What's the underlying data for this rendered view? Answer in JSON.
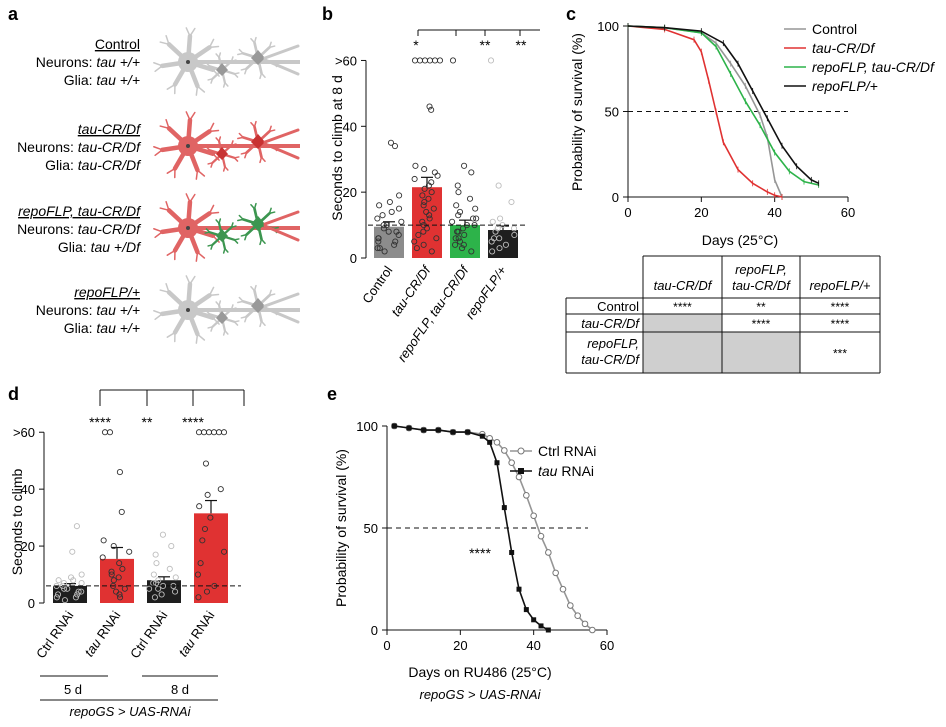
{
  "panel_a": {
    "label": "a",
    "genotypes": [
      {
        "title": "Control",
        "neurons_prefix": "Neurons: ",
        "neurons_value": "tau +/+",
        "glia_prefix": "Glia: ",
        "glia_value": "tau +/+"
      },
      {
        "title": "tau-CR/Df",
        "neurons_prefix": "Neurons: ",
        "neurons_value": "tau-CR/Df",
        "glia_prefix": "Glia: ",
        "glia_value": "tau-CR/Df"
      },
      {
        "title": "repoFLP, tau-CR/Df",
        "neurons_prefix": "Neurons: ",
        "neurons_value": "tau-CR/Df",
        "glia_prefix": "Glia: ",
        "glia_value": "tau +/Df"
      },
      {
        "title": "repoFLP/+",
        "neurons_prefix": "Neurons: ",
        "neurons_value": "tau +/+",
        "glia_prefix": "Glia: ",
        "glia_value": "tau +/+"
      }
    ],
    "colors": {
      "control_neuron": "#c8c8c8",
      "mutant_neuron": "#e06464",
      "mutant_soma": "#c83232",
      "glia_rescue": "#3c9650"
    }
  },
  "panel_b": {
    "label": "b",
    "sig": [
      "*",
      "**",
      "**"
    ],
    "chart_data": {
      "type": "bar",
      "ylabel": "Seconds to climb at 8 d",
      "categories": [
        "Control",
        "tau-CR/Df",
        "repoFLP, tau-CR/Df",
        "repoFLP/+"
      ],
      "values": [
        9.5,
        21.5,
        10,
        8.5
      ],
      "sem": [
        1.5,
        3,
        1.5,
        1.2
      ],
      "colors": [
        "#8c8c8c",
        "#e03232",
        "#2db34a",
        "#1e1e1e"
      ],
      "ytick_labels": [
        "0",
        "20",
        "40",
        ">60"
      ],
      "yticks": [
        0,
        20,
        40,
        60
      ],
      "ylim": [
        0,
        65
      ],
      "threshold": 10,
      "points": [
        [
          34,
          35,
          19,
          17,
          16,
          15,
          13,
          12,
          10,
          9,
          8,
          7,
          6,
          5,
          4,
          3,
          2,
          10,
          14,
          11,
          6,
          3,
          5,
          8
        ],
        [
          60,
          60,
          60,
          60,
          60,
          60,
          46,
          45,
          28,
          27,
          25,
          24,
          22,
          20,
          19,
          18,
          17,
          16,
          15,
          14,
          13,
          12,
          11,
          10,
          9,
          8,
          7,
          6,
          5,
          4,
          3,
          2,
          21,
          23,
          26
        ],
        [
          60,
          28,
          26,
          22,
          20,
          18,
          16,
          15,
          14,
          13,
          12,
          11,
          10,
          9,
          8,
          7,
          6,
          5,
          4,
          3,
          2,
          8,
          10,
          12,
          6,
          4
        ],
        [
          60,
          22,
          17,
          12,
          11,
          10,
          9,
          8,
          7,
          6,
          5,
          4,
          3,
          2,
          9,
          6
        ]
      ]
    }
  },
  "panel_c": {
    "label": "c",
    "chart_data": {
      "type": "line",
      "xlabel": "Days (25°C)",
      "ylabel": "Probability of survival (%)",
      "xlim": [
        0,
        60
      ],
      "ylim": [
        0,
        100
      ],
      "xticks": [
        0,
        20,
        40,
        60
      ],
      "yticks": [
        0,
        50,
        100
      ],
      "reference_line": 50,
      "series": [
        {
          "name": "Control",
          "color": "#969696",
          "x": [
            0,
            10,
            20,
            24,
            28,
            32,
            36,
            38,
            40,
            42
          ],
          "y": [
            100,
            99,
            96,
            90,
            78,
            65,
            48,
            35,
            10,
            0
          ]
        },
        {
          "name": "tau-CR/Df",
          "color": "#e03232",
          "x": [
            0,
            10,
            18,
            20,
            22,
            24,
            26,
            30,
            34,
            38,
            40,
            42
          ],
          "y": [
            100,
            98,
            92,
            85,
            68,
            50,
            32,
            16,
            8,
            3,
            1,
            0
          ]
        },
        {
          "name": "repoFLP, tau-CR/Df",
          "color": "#2db34a",
          "x": [
            0,
            10,
            20,
            24,
            28,
            32,
            36,
            40,
            44,
            48,
            52
          ],
          "y": [
            100,
            99,
            96,
            88,
            72,
            56,
            42,
            26,
            15,
            9,
            7
          ]
        },
        {
          "name": "repoFLP/+",
          "color": "#111111",
          "x": [
            0,
            10,
            20,
            26,
            30,
            34,
            38,
            42,
            46,
            50,
            52
          ],
          "y": [
            100,
            99,
            97,
            90,
            78,
            62,
            46,
            30,
            18,
            10,
            8
          ]
        }
      ]
    },
    "table": {
      "col_headers": [
        [
          "tau-CR/Df"
        ],
        [
          "repoFLP,",
          "tau-CR/Df"
        ],
        [
          "repoFLP/+"
        ]
      ],
      "rows": [
        {
          "label": [
            "Control"
          ],
          "cells": [
            "****",
            "**",
            "****"
          ]
        },
        {
          "label": [
            "tau-CR/Df"
          ],
          "cells": [
            "",
            "****",
            "****"
          ]
        },
        {
          "label": [
            "repoFLP,",
            "tau-CR/Df"
          ],
          "cells": [
            "",
            "",
            "***"
          ]
        }
      ]
    }
  },
  "panel_d": {
    "label": "d",
    "sig": [
      "****",
      "**",
      "****"
    ],
    "group_labels": [
      "5 d",
      "8 d"
    ],
    "genotype_label": "repoGS > UAS-RNAi",
    "chart_data": {
      "type": "bar",
      "ylabel": "Seconds to climb",
      "categories": [
        "Ctrl RNAi",
        "tau RNAi",
        "Ctrl RNAi",
        "tau RNAi"
      ],
      "values": [
        6,
        15.5,
        8,
        31.5
      ],
      "sem": [
        0.8,
        4,
        1.2,
        4.5
      ],
      "colors": [
        "#1e1e1e",
        "#e03232",
        "#1e1e1e",
        "#e03232"
      ],
      "ytick_labels": [
        "0",
        "20",
        "40",
        ">60"
      ],
      "yticks": [
        0,
        20,
        40,
        60
      ],
      "ylim": [
        0,
        65
      ],
      "threshold": 6,
      "points": [
        [
          27,
          18,
          10,
          9,
          8,
          7,
          6,
          6,
          5,
          5,
          4,
          4,
          3,
          3,
          2,
          2,
          1,
          7,
          8
        ],
        [
          60,
          60,
          46,
          32,
          22,
          20,
          18,
          16,
          14,
          12,
          10,
          9,
          8,
          6,
          5,
          4,
          3,
          2,
          11
        ],
        [
          24,
          20,
          17,
          14,
          12,
          10,
          9,
          8,
          7,
          6,
          5,
          4,
          3,
          2,
          6,
          7,
          5
        ],
        [
          60,
          60,
          60,
          60,
          60,
          60,
          49,
          40,
          38,
          34,
          30,
          26,
          22,
          18,
          14,
          10,
          6,
          4,
          2
        ]
      ]
    }
  },
  "panel_e": {
    "label": "e",
    "sig": "****",
    "genotype_label": "repoGS > UAS-RNAi",
    "chart_data": {
      "type": "line",
      "xlabel": "Days on RU486 (25°C)",
      "ylabel": "Probability of survival (%)",
      "xlim": [
        0,
        60
      ],
      "ylim": [
        0,
        100
      ],
      "xticks": [
        0,
        20,
        40,
        60
      ],
      "yticks": [
        0,
        50,
        100
      ],
      "reference_line": 50,
      "series": [
        {
          "name": "Ctrl RNAi",
          "color": "#969696",
          "x": [
            2,
            6,
            10,
            14,
            18,
            22,
            26,
            28,
            30,
            32,
            34,
            36,
            38,
            40,
            42,
            44,
            46,
            48,
            50,
            52,
            54,
            56
          ],
          "y": [
            100,
            99,
            98,
            98,
            97,
            97,
            96,
            94,
            92,
            88,
            82,
            75,
            66,
            56,
            46,
            38,
            28,
            20,
            12,
            7,
            3,
            0
          ]
        },
        {
          "name": "tau RNAi",
          "color": "#111111",
          "x": [
            2,
            6,
            10,
            14,
            18,
            22,
            26,
            28,
            30,
            32,
            34,
            36,
            38,
            40,
            42,
            44
          ],
          "y": [
            100,
            99,
            98,
            98,
            97,
            97,
            95,
            92,
            82,
            60,
            38,
            20,
            10,
            5,
            2,
            0
          ]
        }
      ]
    }
  }
}
